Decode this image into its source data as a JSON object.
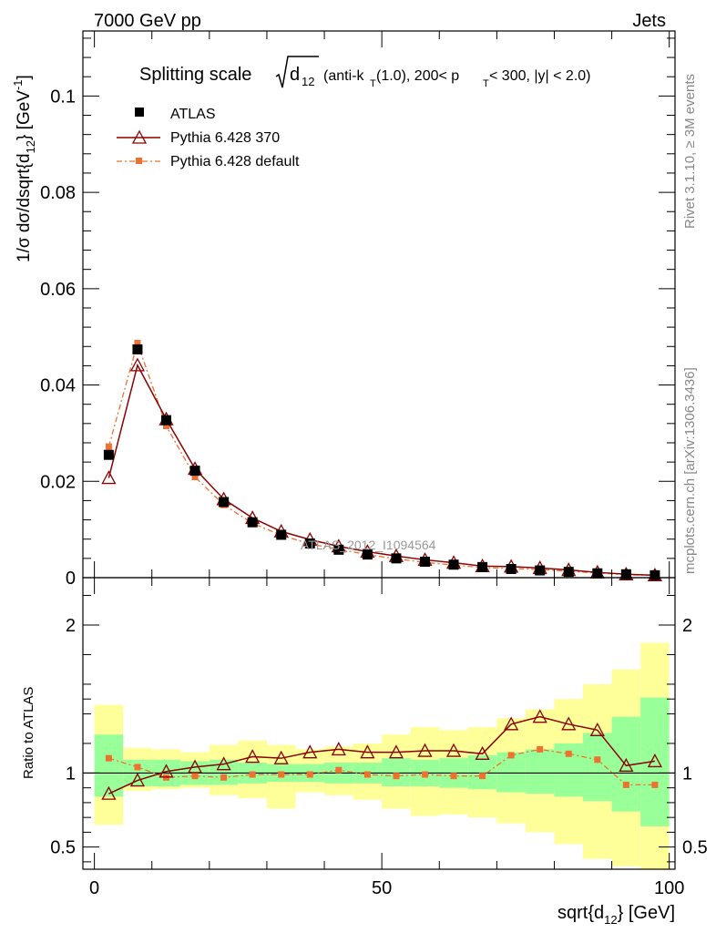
{
  "header": {
    "left_label": "7000 GeV pp",
    "right_label": "Jets"
  },
  "side_labels": {
    "rivet": "Rivet 3.1.10, ≥ 3M events",
    "mcplots": "mcplots.cern.ch [arXiv:1306.3436]"
  },
  "watermark": "ATLAS_2012_I1094564",
  "title": {
    "main": "Splitting scale",
    "sqrt_arg": "d",
    "sqrt_sub": "12",
    "detail": "(anti-k",
    "detail_sub": "T",
    "detail_rest": "(1.0), 200< p",
    "detail_sub2": "T",
    "detail_end": " < 300, |y| < 2.0)"
  },
  "axes": {
    "ylabel_upper": "1/σ dσ/dsqrt{d",
    "ylabel_upper_sub": "12",
    "ylabel_upper_end": "} [GeV",
    "ylabel_upper_sup": "-1",
    "ylabel_upper_close": "]",
    "ylabel_lower": "Ratio to ATLAS",
    "xlabel": "sqrt{d",
    "xlabel_sub": "12",
    "xlabel_end": "} [GeV]"
  },
  "legend": {
    "entries": [
      {
        "label": "ATLAS",
        "marker": "square",
        "color": "#000000"
      },
      {
        "label": "Pythia 6.428 370",
        "marker": "triangle-open",
        "color": "#8b0000"
      },
      {
        "label": "Pythia 6.428 default",
        "marker": "small-square",
        "color": "#f07030"
      }
    ]
  },
  "chart_data": {
    "type": "line",
    "x": [
      2.5,
      7.5,
      12.5,
      17.5,
      22.5,
      27.5,
      32.5,
      37.5,
      42.5,
      47.5,
      52.5,
      57.5,
      62.5,
      67.5,
      72.5,
      77.5,
      82.5,
      87.5,
      92.5,
      97.5
    ],
    "bin_edges": [
      0,
      5,
      10,
      15,
      20,
      25,
      30,
      35,
      40,
      45,
      50,
      55,
      60,
      65,
      70,
      75,
      80,
      85,
      90,
      95,
      100
    ],
    "upper": {
      "xlim": [
        -2,
        101
      ],
      "ylim": [
        0,
        0.1135
      ],
      "yticks": [
        0,
        0.02,
        0.04,
        0.06,
        0.08,
        0.1
      ],
      "ytick_labels": [
        "0",
        "0.02",
        "0.04",
        "0.06",
        "0.08",
        "0.1"
      ],
      "series": [
        {
          "name": "ATLAS",
          "color": "#000000",
          "values": [
            0.0255,
            0.0474,
            0.0327,
            0.0222,
            0.0157,
            0.0115,
            0.0089,
            0.0071,
            0.0058,
            0.0048,
            0.004,
            0.0033,
            0.0027,
            0.0022,
            0.0018,
            0.0015,
            0.0012,
            0.0009,
            0.0007,
            0.0005
          ]
        },
        {
          "name": "Pythia 6.428 370",
          "color": "#8b0000",
          "values": [
            0.0207,
            0.0441,
            0.0329,
            0.0226,
            0.0163,
            0.0124,
            0.0096,
            0.0079,
            0.0065,
            0.0054,
            0.0045,
            0.0037,
            0.0031,
            0.0024,
            0.0023,
            0.002,
            0.0016,
            0.0011,
            0.0007,
            0.0005
          ]
        },
        {
          "name": "Pythia 6.428 default",
          "color": "#f07030",
          "values": [
            0.0272,
            0.0487,
            0.0315,
            0.0209,
            0.0151,
            0.0113,
            0.0088,
            0.007,
            0.0059,
            0.0048,
            0.0039,
            0.0032,
            0.0026,
            0.0021,
            0.0019,
            0.0017,
            0.0013,
            0.001,
            0.0006,
            0.0005
          ]
        }
      ]
    },
    "lower": {
      "xlim": [
        -2,
        101
      ],
      "ylim": [
        0.35,
        2.32
      ],
      "yticks": [
        0.5,
        1,
        2
      ],
      "ytick_labels": [
        "0.5",
        "1",
        "2"
      ],
      "xticks": [
        0,
        50,
        100
      ],
      "xtick_labels": [
        "0",
        "50",
        "100"
      ],
      "band_inner": {
        "color": "#99ff99",
        "lo": [
          0.84,
          0.91,
          0.91,
          0.92,
          0.92,
          0.93,
          0.94,
          0.94,
          0.93,
          0.93,
          0.91,
          0.91,
          0.9,
          0.89,
          0.87,
          0.86,
          0.84,
          0.81,
          0.74,
          0.64
        ],
        "hi": [
          1.26,
          1.09,
          1.09,
          1.08,
          1.09,
          1.07,
          1.06,
          1.06,
          1.07,
          1.07,
          1.1,
          1.09,
          1.1,
          1.12,
          1.14,
          1.16,
          1.2,
          1.27,
          1.38,
          1.51
        ]
      },
      "band_outer": {
        "color": "#ffff99",
        "lo": [
          0.65,
          0.88,
          0.89,
          0.9,
          0.85,
          0.83,
          0.76,
          0.87,
          0.85,
          0.82,
          0.76,
          0.71,
          0.72,
          0.7,
          0.66,
          0.6,
          0.52,
          0.42,
          0.37,
          0.3
        ],
        "hi": [
          1.46,
          1.17,
          1.16,
          1.14,
          1.19,
          1.22,
          1.19,
          1.16,
          1.18,
          1.2,
          1.26,
          1.31,
          1.29,
          1.31,
          1.37,
          1.43,
          1.5,
          1.6,
          1.7,
          1.88
        ]
      },
      "series": [
        {
          "name": "Pythia 6.428 370",
          "color": "#8b0000",
          "values": [
            0.86,
            0.95,
            1.01,
            1.04,
            1.06,
            1.11,
            1.1,
            1.14,
            1.16,
            1.14,
            1.14,
            1.15,
            1.15,
            1.13,
            1.33,
            1.38,
            1.33,
            1.29,
            1.05,
            1.08
          ]
        },
        {
          "name": "Pythia 6.428 default",
          "color": "#f07030",
          "values": [
            1.1,
            1.04,
            0.97,
            0.98,
            0.97,
            0.99,
            0.99,
            0.99,
            1.02,
            0.99,
            0.98,
            0.99,
            0.98,
            0.98,
            1.12,
            1.16,
            1.13,
            1.09,
            0.92,
            0.92
          ]
        }
      ]
    }
  }
}
